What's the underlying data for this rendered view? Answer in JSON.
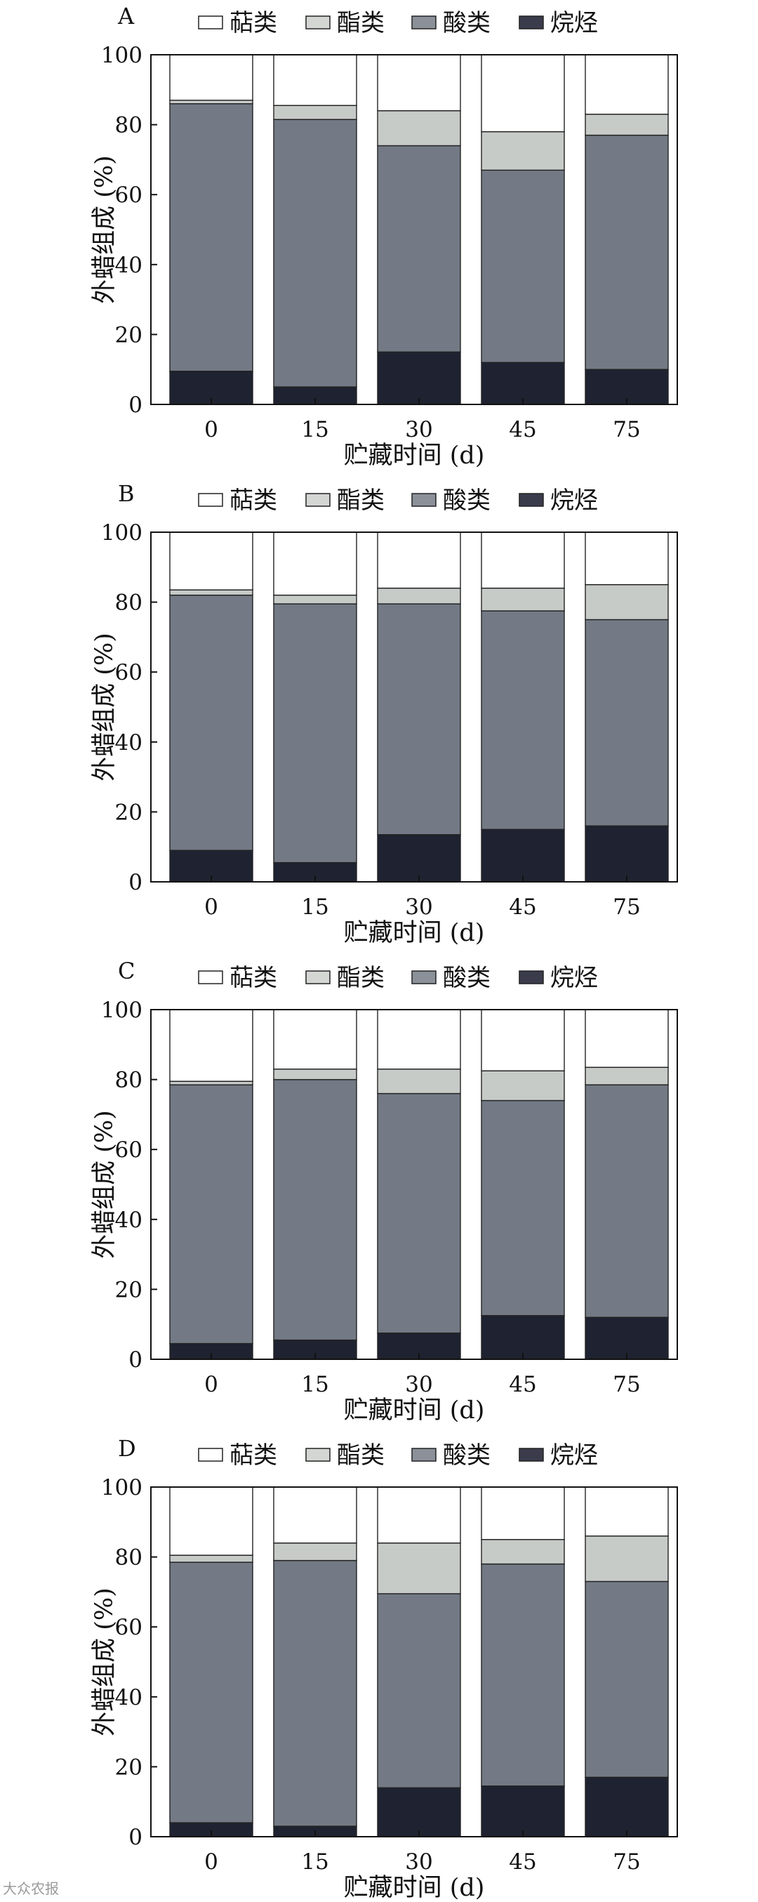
{
  "chart_data": [
    {
      "type": "bar",
      "stacked": true,
      "label": "A",
      "categories": [
        "0",
        "15",
        "30",
        "45",
        "75"
      ],
      "series": [
        {
          "name": "烷烃",
          "values": [
            9.5,
            5,
            15,
            12,
            10
          ]
        },
        {
          "name": "酸类",
          "values": [
            76.5,
            76.5,
            59,
            55,
            67
          ]
        },
        {
          "name": "酯类",
          "values": [
            1,
            4,
            10,
            11,
            6
          ]
        },
        {
          "name": "萜类",
          "values": [
            13,
            14.5,
            16,
            22,
            17
          ]
        }
      ],
      "legend": [
        "萜类",
        "酯类",
        "酸类",
        "烷烃"
      ],
      "xlabel": "贮藏时间 (d)",
      "ylabel": "外蜡组成 (%)",
      "ylim": [
        0,
        100
      ],
      "yticks": [
        "0",
        "20",
        "40",
        "60",
        "80",
        "100"
      ],
      "legend_position": "top"
    },
    {
      "type": "bar",
      "stacked": true,
      "label": "B",
      "categories": [
        "0",
        "15",
        "30",
        "45",
        "75"
      ],
      "series": [
        {
          "name": "烷烃",
          "values": [
            9,
            5.5,
            13.5,
            15,
            16
          ]
        },
        {
          "name": "酸类",
          "values": [
            73,
            74,
            66,
            62.5,
            59
          ]
        },
        {
          "name": "酯类",
          "values": [
            1.5,
            2.5,
            4.5,
            6.5,
            10
          ]
        },
        {
          "name": "萜类",
          "values": [
            16.5,
            18,
            16,
            16,
            15
          ]
        }
      ],
      "legend": [
        "萜类",
        "酯类",
        "酸类",
        "烷烃"
      ],
      "xlabel": "贮藏时间 (d)",
      "ylabel": "外蜡组成 (%)",
      "ylim": [
        0,
        100
      ],
      "yticks": [
        "0",
        "20",
        "40",
        "60",
        "80",
        "100"
      ],
      "legend_position": "top"
    },
    {
      "type": "bar",
      "stacked": true,
      "label": "C",
      "categories": [
        "0",
        "15",
        "30",
        "45",
        "75"
      ],
      "series": [
        {
          "name": "烷烃",
          "values": [
            4.5,
            5.5,
            7.5,
            12.5,
            12
          ]
        },
        {
          "name": "酸类",
          "values": [
            74,
            74.5,
            68.5,
            61.5,
            66.5
          ]
        },
        {
          "name": "酯类",
          "values": [
            1,
            3,
            7,
            8.5,
            5
          ]
        },
        {
          "name": "萜类",
          "values": [
            20.5,
            17,
            17,
            17.5,
            16.5
          ]
        }
      ],
      "legend": [
        "萜类",
        "酯类",
        "酸类",
        "烷烃"
      ],
      "xlabel": "贮藏时间 (d)",
      "ylabel": "外蜡组成 (%)",
      "ylim": [
        0,
        100
      ],
      "yticks": [
        "0",
        "20",
        "40",
        "60",
        "80",
        "100"
      ],
      "legend_position": "top"
    },
    {
      "type": "bar",
      "stacked": true,
      "label": "D",
      "categories": [
        "0",
        "15",
        "30",
        "45",
        "75"
      ],
      "series": [
        {
          "name": "烷烃",
          "values": [
            4,
            3,
            14,
            14.5,
            17
          ]
        },
        {
          "name": "酸类",
          "values": [
            74.5,
            76,
            55.5,
            63.5,
            56
          ]
        },
        {
          "name": "酯类",
          "values": [
            2,
            5,
            14.5,
            7,
            13
          ]
        },
        {
          "name": "萜类",
          "values": [
            19.5,
            16,
            16,
            15,
            14
          ]
        }
      ],
      "legend": [
        "萜类",
        "酯类",
        "酸类",
        "烷烃"
      ],
      "xlabel": "贮藏时间 (d)",
      "ylabel": "外蜡组成 (%)",
      "ylim": [
        0,
        100
      ],
      "yticks": [
        "0",
        "20",
        "40",
        "60",
        "80",
        "100"
      ],
      "legend_position": "top"
    }
  ],
  "colors": {
    "萜类": "#ffffff",
    "酯类": "#c7cbc8",
    "酸类": "#737a85",
    "烷烃": "#1f2230"
  },
  "legend_swatch_colors": {
    "萜类": "#ffffff",
    "酯类": "#d3d6d3",
    "酸类": "#8b9099",
    "烷烃": "#3a3c4c"
  },
  "watermark": "大众农报"
}
